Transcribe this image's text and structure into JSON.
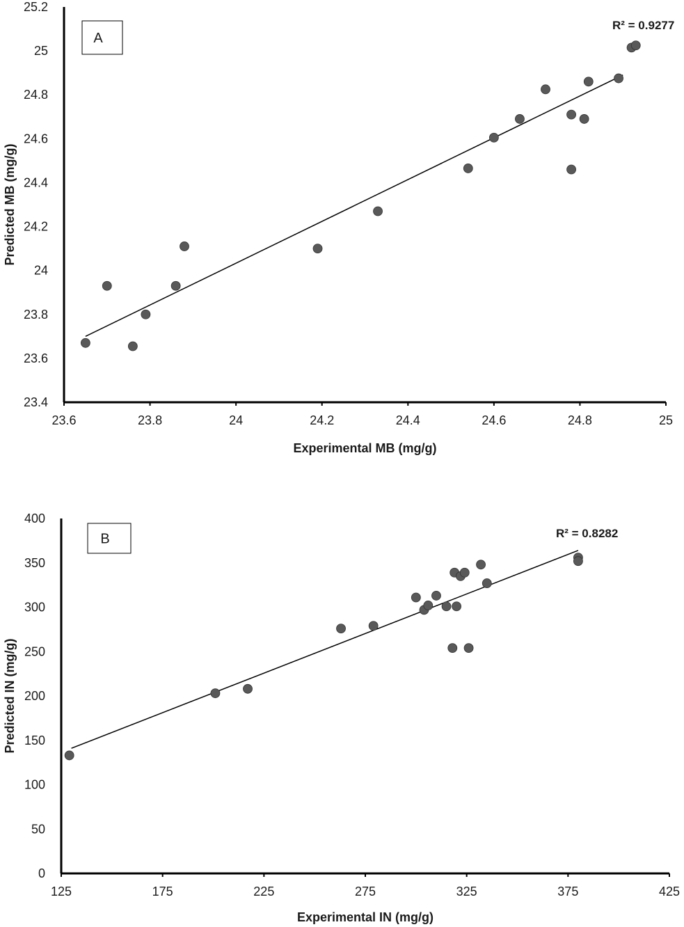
{
  "chart_data": [
    {
      "type": "scatter",
      "panel_label": "A",
      "xlabel": "Experimental MB (mg/g)",
      "ylabel": "Predicted MB (mg/g)",
      "xlim": [
        23.6,
        25
      ],
      "ylim": [
        23.4,
        25.2
      ],
      "xticks": [
        "23.6",
        "23.8",
        "24",
        "24.2",
        "24.4",
        "24.6",
        "24.8",
        "25"
      ],
      "yticks": [
        "23.4",
        "23.6",
        "23.8",
        "24",
        "24.2",
        "24.4",
        "24.6",
        "24.8",
        "25",
        "25.2"
      ],
      "annotation": "R² = 0.9277",
      "trendline": {
        "x": [
          23.65,
          24.9
        ],
        "y": [
          23.7,
          24.89
        ]
      },
      "points": [
        [
          23.65,
          23.67
        ],
        [
          23.7,
          23.93
        ],
        [
          23.76,
          23.655
        ],
        [
          23.79,
          23.8
        ],
        [
          23.86,
          23.93
        ],
        [
          23.88,
          24.11
        ],
        [
          24.19,
          24.1
        ],
        [
          24.33,
          24.27
        ],
        [
          24.54,
          24.465
        ],
        [
          24.6,
          24.605
        ],
        [
          24.66,
          24.69
        ],
        [
          24.72,
          24.825
        ],
        [
          24.78,
          24.71
        ],
        [
          24.78,
          24.46
        ],
        [
          24.81,
          24.69
        ],
        [
          24.82,
          24.86
        ],
        [
          24.89,
          24.875
        ],
        [
          24.92,
          25.015
        ],
        [
          24.93,
          25.025
        ]
      ],
      "grid": false,
      "marker_color": "#595959"
    },
    {
      "type": "scatter",
      "panel_label": "B",
      "xlabel": "Experimental IN (mg/g)",
      "ylabel": "Predicted IN (mg/g)",
      "xlim": [
        125,
        425
      ],
      "ylim": [
        0,
        400
      ],
      "xticks": [
        "125",
        "175",
        "225",
        "275",
        "325",
        "375",
        "425"
      ],
      "yticks": [
        "0",
        "50",
        "100",
        "150",
        "200",
        "250",
        "300",
        "350",
        "400"
      ],
      "annotation": "R² = 0.8282",
      "trendline": {
        "x": [
          130,
          380
        ],
        "y": [
          141,
          364
        ]
      },
      "points": [
        [
          129,
          133
        ],
        [
          201,
          203
        ],
        [
          217,
          208
        ],
        [
          263,
          276
        ],
        [
          279,
          279
        ],
        [
          300,
          311
        ],
        [
          304,
          297
        ],
        [
          306,
          302
        ],
        [
          310,
          313
        ],
        [
          315,
          301
        ],
        [
          318,
          254
        ],
        [
          319,
          339
        ],
        [
          320,
          301
        ],
        [
          322,
          335
        ],
        [
          324,
          339
        ],
        [
          326,
          254
        ],
        [
          332,
          348
        ],
        [
          335,
          327
        ],
        [
          380,
          356
        ],
        [
          380,
          352
        ]
      ],
      "grid": false,
      "marker_color": "#595959"
    }
  ]
}
